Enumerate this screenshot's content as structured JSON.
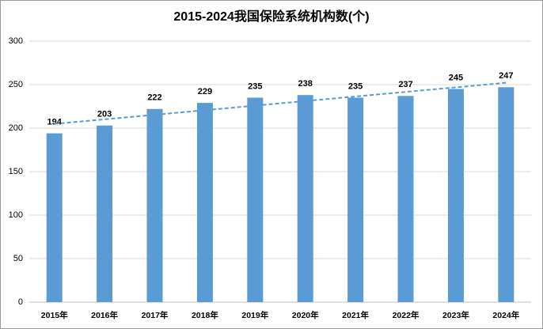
{
  "chart_data": {
    "type": "bar",
    "title": "2015-2024我国保险系统机构数(个)",
    "categories": [
      "2015年",
      "2016年",
      "2017年",
      "2018年",
      "2019年",
      "2020年",
      "2021年",
      "2022年",
      "2023年",
      "2024年"
    ],
    "values": [
      194,
      203,
      222,
      229,
      235,
      238,
      235,
      237,
      245,
      247
    ],
    "color": "#5b9bd5",
    "ylim": [
      0,
      300
    ],
    "yticks": [
      0,
      50,
      100,
      150,
      200,
      250,
      300
    ],
    "grid": true,
    "data_labels": true,
    "trendline": "linear"
  }
}
